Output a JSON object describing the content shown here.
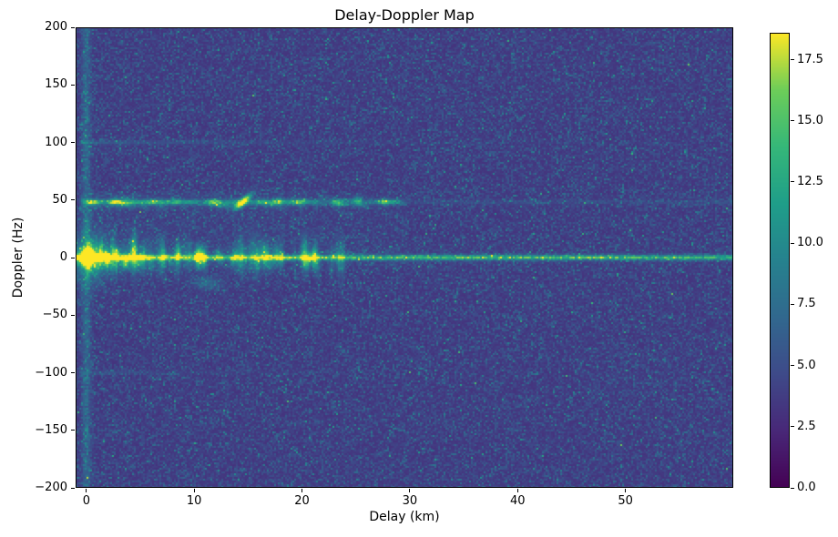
{
  "chart_data": {
    "type": "heatmap",
    "title": "Delay-Doppler Map",
    "xlabel": "Delay (km)",
    "ylabel": "Doppler (Hz)",
    "colormap": "viridis",
    "xlim": [
      -1,
      60
    ],
    "ylim": [
      -200,
      200
    ],
    "vmin": 0,
    "vmax": 18.6,
    "x_ticks": [
      {
        "value": 0,
        "label": "0"
      },
      {
        "value": 10,
        "label": "10"
      },
      {
        "value": 20,
        "label": "20"
      },
      {
        "value": 30,
        "label": "30"
      },
      {
        "value": 40,
        "label": "40"
      },
      {
        "value": 50,
        "label": "50"
      }
    ],
    "y_ticks": [
      {
        "value": 200,
        "label": "200"
      },
      {
        "value": 150,
        "label": "150"
      },
      {
        "value": 100,
        "label": "100"
      },
      {
        "value": 50,
        "label": "50"
      },
      {
        "value": 0,
        "label": "0"
      },
      {
        "value": -50,
        "label": "−50"
      },
      {
        "value": -100,
        "label": "−100"
      },
      {
        "value": -150,
        "label": "−150"
      },
      {
        "value": -200,
        "label": "−200"
      }
    ],
    "colorbar_ticks": [
      {
        "value": 17.5,
        "label": "17.5"
      },
      {
        "value": 15.0,
        "label": "15.0"
      },
      {
        "value": 12.5,
        "label": "12.5"
      },
      {
        "value": 10.0,
        "label": "10.0"
      },
      {
        "value": 7.5,
        "label": "7.5"
      },
      {
        "value": 5.0,
        "label": "5.0"
      },
      {
        "value": 2.5,
        "label": "2.5"
      },
      {
        "value": 0.0,
        "label": "0.0"
      }
    ],
    "seed": 1337,
    "background_noise": {
      "base": 3.1,
      "scale": 1.25
    },
    "features": {
      "direct_path_peak": {
        "delay_km": 0,
        "doppler_hz": 0,
        "amplitude": 18
      },
      "zero_doppler_clutter_ridge": {
        "doppler_hz": 0,
        "amplitude": 10,
        "width_hz": 1.5
      },
      "zero_delay_column": {
        "delay_km": 0,
        "amplitude": 3.0,
        "width_km": 0.28
      },
      "target_streak": {
        "doppler_hz": 48,
        "delay_start_km": 0,
        "delay_end_km": 30,
        "amplitude": 6,
        "faint_amplitude": 1.7,
        "width_hz": 1.6
      },
      "target_peak": {
        "delay_km": 14.6,
        "doppler_hz": 49,
        "amplitude": 16,
        "tilt_hz_per_km": 7
      },
      "streak_bright_segments": [
        {
          "delay_km": 0.5,
          "amplitude": 4.5,
          "length_km": 0.4
        },
        {
          "delay_km": 1.2,
          "amplitude": 4.0,
          "length_km": 0.4
        },
        {
          "delay_km": 2.3,
          "amplitude": 5.5,
          "length_km": 0.5
        },
        {
          "delay_km": 3.2,
          "amplitude": 4.0,
          "length_km": 0.4
        },
        {
          "delay_km": 4.7,
          "amplitude": 5.0,
          "length_km": 0.6
        },
        {
          "delay_km": 6.2,
          "amplitude": 6.0,
          "length_km": 0.5
        },
        {
          "delay_km": 7.2,
          "amplitude": 4.5,
          "length_km": 0.4
        },
        {
          "delay_km": 8.6,
          "amplitude": 5.5,
          "length_km": 0.6
        },
        {
          "delay_km": 9.6,
          "amplitude": 4.5,
          "length_km": 0.4
        },
        {
          "delay_km": 11.3,
          "amplitude": 3.5,
          "length_km": 0.5
        },
        {
          "delay_km": 13.1,
          "amplitude": 3.5,
          "length_km": 0.4
        },
        {
          "delay_km": 16.4,
          "amplitude": 3.5,
          "length_km": 0.5
        },
        {
          "delay_km": 18.2,
          "amplitude": 4.0,
          "length_km": 0.5
        },
        {
          "delay_km": 20.9,
          "amplitude": 3.0,
          "length_km": 0.4
        },
        {
          "delay_km": 23.4,
          "amplitude": 3.0,
          "length_km": 0.4
        },
        {
          "delay_km": 27.6,
          "amplitude": 4.5,
          "length_km": 0.7
        }
      ],
      "doppler_ambiguity_lines": [
        {
          "doppler_hz": 100,
          "amplitude": 2.2,
          "extent_km": 32
        },
        {
          "doppler_hz": -100,
          "amplitude": 1.8,
          "extent_km": 14
        }
      ],
      "near_zero_spikes": {
        "count": 110,
        "max_delay_km": 24,
        "amplitude_max": 6.5
      },
      "streak_fuzz": {
        "count": 45,
        "max_delay_km": 28
      },
      "minor_blob": {
        "delay_km": 11.2,
        "doppler_hz": -22,
        "amplitude": 3.2
      }
    }
  }
}
